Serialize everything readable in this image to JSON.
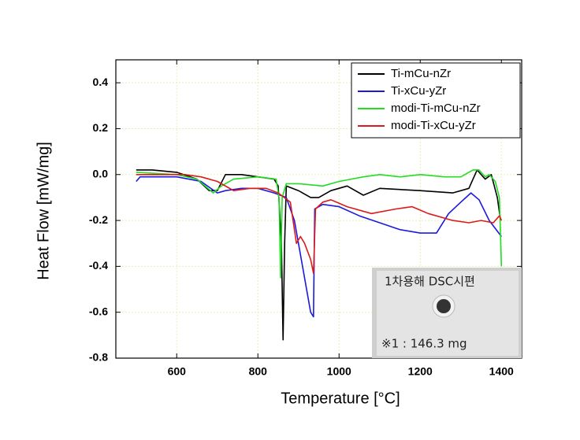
{
  "chart_data": {
    "type": "line",
    "x_label": "Temperature [°C]",
    "y_label": "Heat Flow [mW/mg]",
    "xlim": [
      450,
      1450
    ],
    "ylim": [
      -0.8,
      0.5
    ],
    "xticks": [
      600,
      800,
      1000,
      1200,
      1400
    ],
    "yticks": [
      -0.8,
      -0.6,
      -0.4,
      -0.2,
      {
        "value": 0,
        "label": "0.0"
      },
      0.2,
      0.4
    ],
    "grid": true,
    "grid_color": "#e6efb0",
    "legend": "top-right",
    "inset_texts": [
      "1차용해 DSC시편",
      "※1 : 146.3 mg"
    ],
    "series": [
      {
        "name": "Ti-mCu-nZr",
        "color": "#000000",
        "x": [
          500,
          540,
          600,
          650,
          680,
          700,
          720,
          760,
          800,
          840,
          850,
          858,
          862,
          866,
          870,
          900,
          930,
          950,
          980,
          1020,
          1060,
          1100,
          1200,
          1280,
          1320,
          1340,
          1360,
          1375,
          1390,
          1398
        ],
        "values": [
          0.02,
          0.02,
          0.01,
          -0.02,
          -0.07,
          -0.07,
          0.0,
          0.0,
          -0.01,
          -0.02,
          -0.05,
          -0.3,
          -0.72,
          -0.3,
          -0.05,
          -0.07,
          -0.1,
          -0.1,
          -0.07,
          -0.05,
          -0.09,
          -0.06,
          -0.07,
          -0.08,
          -0.06,
          0.02,
          -0.02,
          0.0,
          -0.1,
          -0.2
        ]
      },
      {
        "name": "Ti-xCu-yZr",
        "color": "#1a1adf",
        "x": [
          500,
          510,
          600,
          660,
          700,
          720,
          760,
          800,
          840,
          870,
          890,
          910,
          930,
          937,
          940,
          960,
          1000,
          1050,
          1100,
          1150,
          1200,
          1240,
          1270,
          1300,
          1325,
          1345,
          1370,
          1400
        ],
        "values": [
          -0.03,
          -0.01,
          -0.01,
          -0.03,
          -0.08,
          -0.07,
          -0.06,
          -0.06,
          -0.08,
          -0.1,
          -0.2,
          -0.4,
          -0.6,
          -0.62,
          -0.15,
          -0.13,
          -0.14,
          -0.18,
          -0.21,
          -0.24,
          -0.255,
          -0.255,
          -0.17,
          -0.12,
          -0.08,
          -0.11,
          -0.2,
          -0.27
        ]
      },
      {
        "name": "modi-Ti-mCu-nZr",
        "color": "#22dd22",
        "x": [
          500,
          600,
          650,
          690,
          710,
          740,
          800,
          845,
          852,
          856,
          860,
          870,
          900,
          960,
          1000,
          1060,
          1100,
          1150,
          1200,
          1260,
          1300,
          1330,
          1345,
          1360,
          1370,
          1385,
          1395,
          1400
        ],
        "values": [
          0.01,
          0.0,
          -0.02,
          -0.08,
          -0.05,
          -0.02,
          -0.01,
          -0.02,
          -0.1,
          -0.45,
          -0.1,
          -0.04,
          -0.04,
          -0.05,
          -0.03,
          -0.01,
          0.0,
          -0.01,
          0.0,
          -0.01,
          -0.01,
          0.02,
          0.02,
          -0.01,
          0.0,
          -0.03,
          -0.1,
          -0.4
        ]
      },
      {
        "name": "modi-Ti-xCu-yZr",
        "color": "#dd1a1a",
        "x": [
          500,
          560,
          620,
          660,
          700,
          740,
          780,
          820,
          850,
          880,
          895,
          905,
          915,
          930,
          937,
          942,
          960,
          980,
          1020,
          1080,
          1140,
          1180,
          1220,
          1280,
          1320,
          1350,
          1380,
          1395,
          1400
        ],
        "values": [
          0.0,
          0.0,
          0.0,
          -0.01,
          -0.03,
          -0.07,
          -0.06,
          -0.06,
          -0.08,
          -0.12,
          -0.3,
          -0.27,
          -0.3,
          -0.37,
          -0.43,
          -0.15,
          -0.12,
          -0.11,
          -0.14,
          -0.17,
          -0.15,
          -0.14,
          -0.17,
          -0.2,
          -0.21,
          -0.2,
          -0.21,
          -0.18,
          -0.2
        ]
      }
    ]
  }
}
